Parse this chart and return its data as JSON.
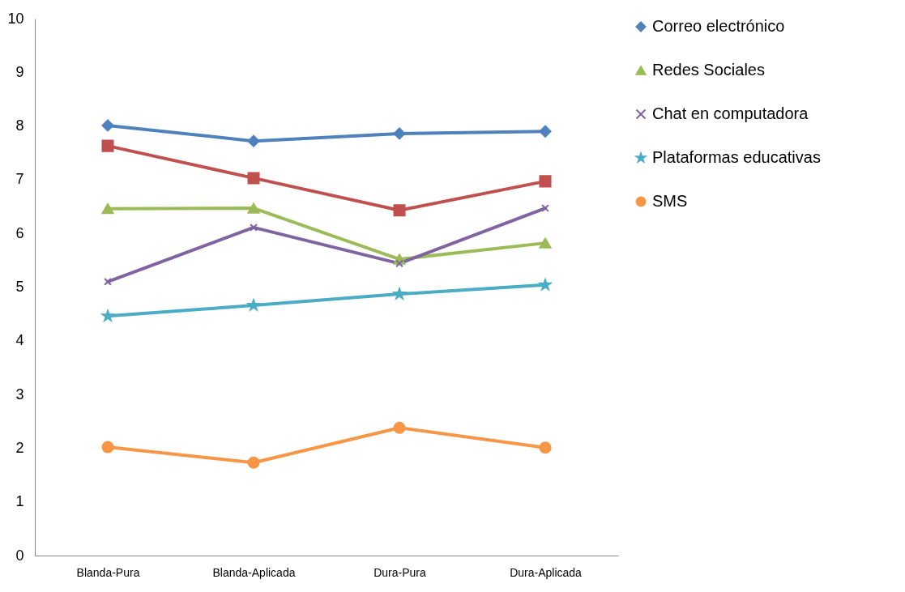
{
  "chart_data": {
    "type": "line",
    "categories": [
      "Blanda-Pura",
      "Blanda-Aplicada",
      "Dura-Pura",
      "Dura-Aplicada"
    ],
    "ylim": [
      0,
      10
    ],
    "yticks": [
      0,
      1,
      2,
      3,
      4,
      5,
      6,
      7,
      8,
      9,
      10
    ],
    "grid": false,
    "legend": "right",
    "series": [
      {
        "name": "Correo electrónico",
        "color": "#4f81bd",
        "marker": "diamond",
        "values": [
          8.01,
          7.72,
          7.86,
          7.9
        ]
      },
      {
        "color": "#c0504d",
        "marker": "square",
        "values": [
          7.63,
          7.03,
          6.43,
          6.97
        ]
      },
      {
        "name": "Redes Sociales",
        "color": "#9bbb59",
        "marker": "triangle",
        "values": [
          6.46,
          6.47,
          5.52,
          5.82
        ]
      },
      {
        "name": "Chat en computadora",
        "color": "#8064a2",
        "marker": "cross",
        "values": [
          5.1,
          6.11,
          5.44,
          6.47
        ]
      },
      {
        "name": "Plataformas educativas",
        "color": "#4bacc6",
        "marker": "star",
        "values": [
          4.46,
          4.66,
          4.87,
          5.04
        ]
      },
      {
        "name": "SMS",
        "color": "#f79646",
        "marker": "circle",
        "values": [
          2.02,
          1.73,
          2.38,
          2.01
        ]
      }
    ]
  }
}
